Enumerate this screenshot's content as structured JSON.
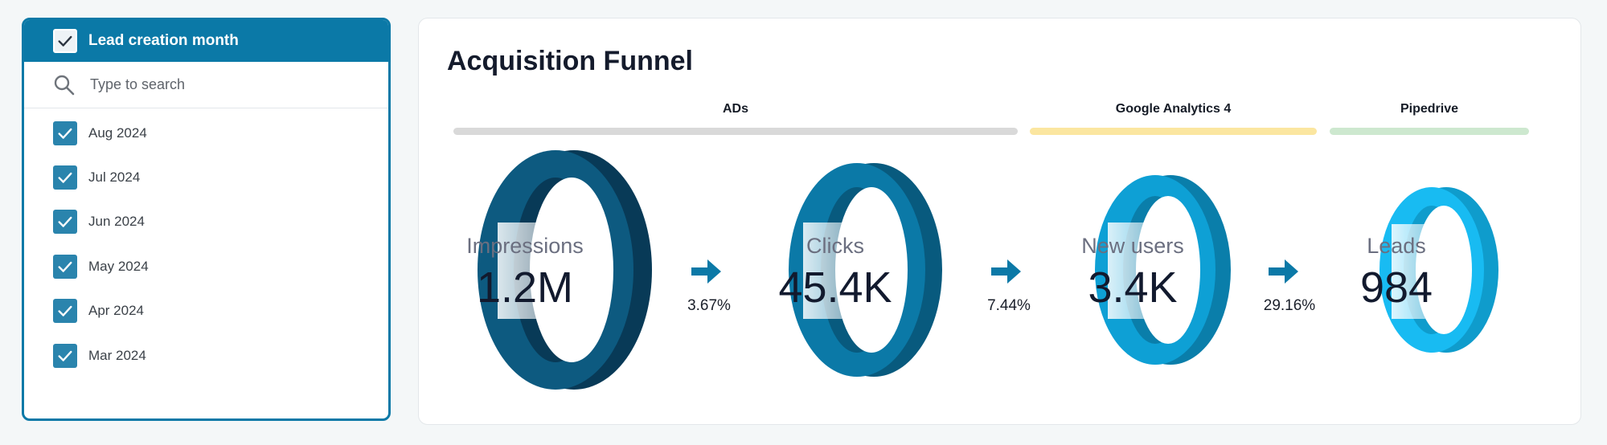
{
  "filter": {
    "title": "Lead creation month",
    "search_placeholder": "Type to search",
    "items": [
      {
        "label": "Aug 2024",
        "checked": true
      },
      {
        "label": "Jul 2024",
        "checked": true
      },
      {
        "label": "Jun 2024",
        "checked": true
      },
      {
        "label": "May 2024",
        "checked": true
      },
      {
        "label": "Apr 2024",
        "checked": true
      },
      {
        "label": "Mar 2024",
        "checked": true
      }
    ],
    "accent_color": "#0b79a7"
  },
  "funnel": {
    "title": "Acquisition Funnel",
    "sources": [
      {
        "label": "ADs",
        "color": "#d9d9d9"
      },
      {
        "label": "Google Analytics 4",
        "color": "#fbe6a0"
      },
      {
        "label": "Pipedrive",
        "color": "#cde8cf"
      }
    ],
    "stages": [
      {
        "label": "Impressions",
        "value": "1.2M",
        "color_front": "#0d5a80",
        "color_side": "#083a57"
      },
      {
        "label": "Clicks",
        "value": "45.4K",
        "color_front": "#0b79a7",
        "color_side": "#085a7e"
      },
      {
        "label": "New users",
        "value": "3.4K",
        "color_front": "#0ea0d5",
        "color_side": "#0a7eaa"
      },
      {
        "label": "Leads",
        "value": "984",
        "color_front": "#18bbf2",
        "color_side": "#0f9ccc"
      }
    ],
    "conversion_rates": [
      "3.67%",
      "7.44%",
      "29.16%"
    ],
    "arrow_color": "#0b79a7"
  }
}
